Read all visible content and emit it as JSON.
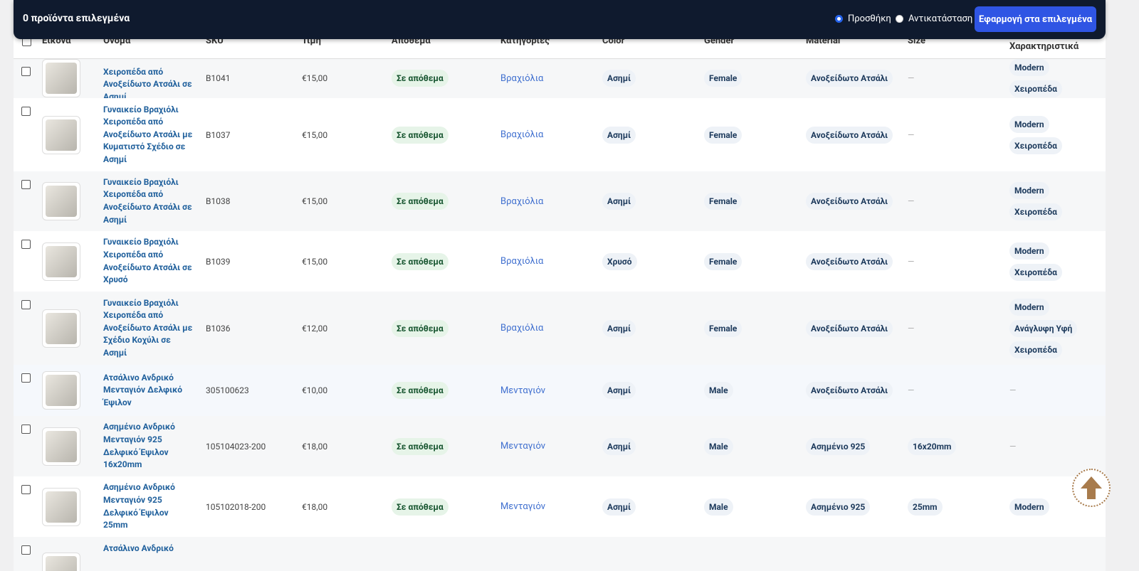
{
  "toolbar": {
    "selected": "0 προϊόντα επιλεγμένα",
    "modes": [
      "Προσθήκη",
      "Αντικατάσταση"
    ],
    "apply": "Εφαρμογή στα επιλεγμένα"
  },
  "table": {
    "headers": [
      "Εικόνα",
      "Όνομα",
      "SKU",
      "Τιμή",
      "Απόθεμα",
      "Κατηγορίες",
      "Color",
      "Gender",
      "Material",
      "Size",
      "Χαρακτηριστικά"
    ],
    "rows": [
      {
        "name": "Χειροπέδα από Ανοξείδωτο Ατσάλι σε Ασημί",
        "sku": "B1041",
        "price": "€15,00",
        "stock": "Σε απόθεμα",
        "category": "Βραχιόλια",
        "color": "Ασημί",
        "gender": "Female",
        "material": "Ανοξείδωτο Ατσάλι",
        "size": "—",
        "attributes": [
          "Modern",
          "Χειροπέδα"
        ]
      },
      {
        "name": "Γυναικείο Βραχιόλι Χειροπέδα από Ανοξείδωτο Ατσάλι με Κυματιστό Σχέδιο σε Ασημί",
        "sku": "B1037",
        "price": "€15,00",
        "stock": "Σε απόθεμα",
        "category": "Βραχιόλια",
        "color": "Ασημί",
        "gender": "Female",
        "material": "Ανοξείδωτο Ατσάλι",
        "size": "—",
        "attributes": [
          "Modern",
          "Χειροπέδα"
        ]
      },
      {
        "name": "Γυναικείο Βραχιόλι Χειροπέδα από Ανοξείδωτο Ατσάλι σε Ασημί",
        "sku": "B1038",
        "price": "€15,00",
        "stock": "Σε απόθεμα",
        "category": "Βραχιόλια",
        "color": "Ασημί",
        "gender": "Female",
        "material": "Ανοξείδωτο Ατσάλι",
        "size": "—",
        "attributes": [
          "Modern",
          "Χειροπέδα"
        ]
      },
      {
        "name": "Γυναικείο Βραχιόλι Χειροπέδα από Ανοξείδωτο Ατσάλι σε Χρυσό",
        "sku": "B1039",
        "price": "€15,00",
        "stock": "Σε απόθεμα",
        "category": "Βραχιόλια",
        "color": "Χρυσό",
        "gender": "Female",
        "material": "Ανοξείδωτο Ατσάλι",
        "size": "—",
        "attributes": [
          "Modern",
          "Χειροπέδα"
        ]
      },
      {
        "name": "Γυναικείο Βραχιόλι Χειροπέδα από Ανοξείδωτο Ατσάλι με Σχέδιο Κοχύλι σε Ασημί",
        "sku": "B1036",
        "price": "€12,00",
        "stock": "Σε απόθεμα",
        "category": "Βραχιόλια",
        "color": "Ασημί",
        "gender": "Female",
        "material": "Ανοξείδωτο Ατσάλι",
        "size": "—",
        "attributes": [
          "Modern",
          "Ανάγλυφη Υφή",
          "Χειροπέδα"
        ]
      },
      {
        "name": "Ατσάλινο Ανδρικό Μενταγιόν Δελφικό Έψιλον",
        "sku": "305100623",
        "price": "€10,00",
        "stock": "Σε απόθεμα",
        "category": "Μενταγιόν",
        "color": "Ασημί",
        "gender": "Male",
        "material": "Ανοξείδωτο Ατσάλι",
        "size": "—",
        "attributes": "—"
      },
      {
        "name": "Ασημένιο Ανδρικό Μενταγιόν 925 Δελφικό Έψιλον 16x20mm",
        "sku": "105104023-200",
        "price": "€18,00",
        "stock": "Σε απόθεμα",
        "category": "Μενταγιόν",
        "color": "Ασημί",
        "gender": "Male",
        "material": "Ασημένιο 925",
        "size": "16x20mm",
        "attributes": "—"
      },
      {
        "name": "Ασημένιο Ανδρικό Μενταγιόν 925 Δελφικό Έψιλον 25mm",
        "sku": "105102018-200",
        "price": "€18,00",
        "stock": "Σε απόθεμα",
        "category": "Μενταγιόν",
        "color": "Ασημί",
        "gender": "Male",
        "material": "Ασημένιο 925",
        "size": "25mm",
        "attributes": [
          "Modern"
        ]
      },
      {
        "name": "Ατσάλινο Ανδρικό"
      }
    ]
  }
}
